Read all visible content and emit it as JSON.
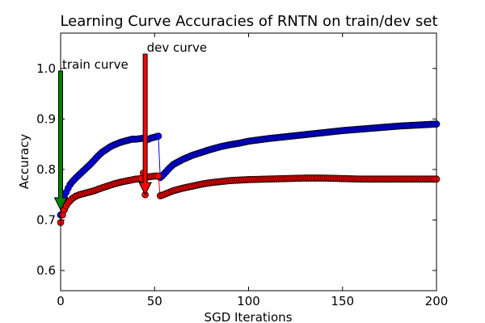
{
  "chart_data": {
    "type": "line",
    "title": "Learning Curve Accuracies of RNTN on train/dev set",
    "xlabel": "SGD Iterations",
    "ylabel": "Accuracy",
    "xlim": [
      0,
      200
    ],
    "ylim": [
      0.56,
      1.07
    ],
    "xticks": [
      "0",
      "50",
      "100",
      "150",
      "200"
    ],
    "yticks": [
      "0.6",
      "0.7",
      "0.8",
      "0.9",
      "1.0"
    ],
    "grid": false,
    "colors": {
      "train": "#0000ff",
      "dev": "#ff0000",
      "train_arrow": "#008000",
      "dev_arrow": "#ff0000"
    },
    "annotations": [
      {
        "text": "train curve",
        "x": 0,
        "y": 0.72,
        "color": "#008000"
      },
      {
        "text": "dev curve",
        "x": 45,
        "y": 0.75,
        "color": "#ff0000"
      }
    ],
    "series": [
      {
        "x": [
          0,
          1,
          2,
          3,
          4,
          5,
          6,
          7,
          8,
          10,
          12,
          14,
          16,
          18,
          20,
          22,
          24,
          26,
          28,
          30,
          32,
          34,
          36,
          38,
          40,
          42,
          44,
          46,
          48,
          50,
          52,
          53,
          54,
          56,
          58,
          60,
          65,
          70,
          75,
          80,
          85,
          90,
          95,
          100,
          110,
          120,
          130,
          140,
          150,
          160,
          170,
          180,
          190,
          200
        ],
        "y": [
          0.71,
          0.73,
          0.745,
          0.755,
          0.763,
          0.77,
          0.775,
          0.779,
          0.783,
          0.79,
          0.797,
          0.804,
          0.811,
          0.819,
          0.827,
          0.834,
          0.839,
          0.844,
          0.848,
          0.851,
          0.854,
          0.856,
          0.858,
          0.86,
          0.86,
          0.861,
          0.862,
          0.859,
          0.862,
          0.864,
          0.866,
          0.784,
          0.787,
          0.795,
          0.803,
          0.81,
          0.82,
          0.828,
          0.834,
          0.84,
          0.845,
          0.849,
          0.852,
          0.856,
          0.861,
          0.865,
          0.869,
          0.873,
          0.877,
          0.88,
          0.883,
          0.886,
          0.888,
          0.89
        ]
      },
      {
        "x": [
          0,
          1,
          2,
          3,
          4,
          5,
          6,
          8,
          10,
          12,
          14,
          16,
          18,
          20,
          24,
          28,
          32,
          36,
          40,
          43,
          44,
          45,
          46,
          48,
          50,
          52,
          53,
          54,
          56,
          58,
          60,
          65,
          70,
          75,
          80,
          85,
          90,
          95,
          100,
          110,
          120,
          130,
          140,
          150,
          160,
          170,
          180,
          190,
          200
        ],
        "y": [
          0.695,
          0.71,
          0.72,
          0.728,
          0.734,
          0.738,
          0.742,
          0.747,
          0.75,
          0.752,
          0.754,
          0.756,
          0.758,
          0.761,
          0.766,
          0.771,
          0.775,
          0.778,
          0.781,
          0.782,
          0.793,
          0.75,
          0.785,
          0.786,
          0.787,
          0.787,
          0.748,
          0.749,
          0.752,
          0.755,
          0.758,
          0.763,
          0.767,
          0.771,
          0.774,
          0.776,
          0.778,
          0.779,
          0.78,
          0.781,
          0.782,
          0.783,
          0.783,
          0.782,
          0.781,
          0.781,
          0.781,
          0.781,
          0.781
        ]
      }
    ]
  }
}
